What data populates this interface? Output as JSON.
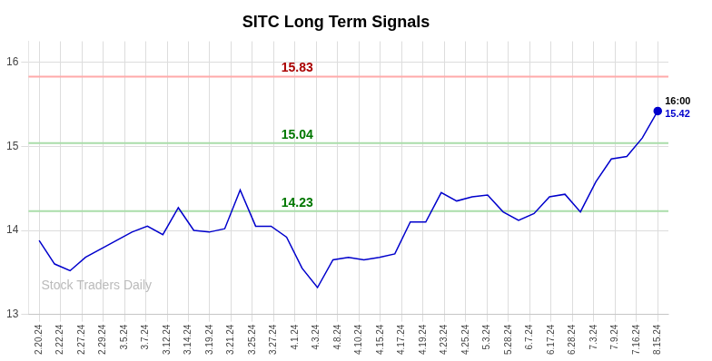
{
  "chart_data": {
    "type": "line",
    "title": "SITC Long Term Signals",
    "x": [
      0,
      0.725,
      1.45,
      2.175,
      2.9,
      3.625,
      4.35,
      5.075,
      5.8,
      6.525,
      7.25,
      7.975,
      8.7,
      9.425,
      10.15,
      10.875,
      11.6,
      12.325,
      13.05,
      13.775,
      14.5,
      15.225,
      15.95,
      16.675,
      17.4,
      18.125,
      18.85,
      19.575,
      20.3,
      21.025,
      21.75,
      22.475,
      23.2,
      23.925,
      24.65,
      25.375,
      26.1,
      26.825,
      27.55,
      28.275,
      29
    ],
    "values": [
      13.88,
      13.6,
      13.52,
      13.68,
      13.78,
      13.88,
      13.98,
      14.05,
      13.95,
      14.27,
      14.0,
      13.98,
      14.02,
      14.48,
      14.05,
      14.05,
      13.92,
      13.55,
      13.32,
      13.65,
      13.68,
      13.65,
      13.68,
      13.72,
      14.1,
      14.1,
      14.45,
      14.35,
      14.4,
      14.42,
      14.22,
      14.12,
      14.2,
      14.4,
      14.43,
      14.22,
      14.58,
      14.85,
      14.88,
      15.1,
      15.42
    ],
    "color": "#0000cc",
    "xlim": [
      -0.5,
      29.5
    ],
    "xticks": [
      {
        "value": 0,
        "label": "2.20.24"
      },
      {
        "value": 1,
        "label": "2.22.24"
      },
      {
        "value": 2,
        "label": "2.27.24"
      },
      {
        "value": 3,
        "label": "2.29.24"
      },
      {
        "value": 4,
        "label": "3.5.24"
      },
      {
        "value": 5,
        "label": "3.7.24"
      },
      {
        "value": 6,
        "label": "3.12.24"
      },
      {
        "value": 7,
        "label": "3.14.24"
      },
      {
        "value": 8,
        "label": "3.19.24"
      },
      {
        "value": 9,
        "label": "3.21.24"
      },
      {
        "value": 10,
        "label": "3.25.24"
      },
      {
        "value": 11,
        "label": "3.27.24"
      },
      {
        "value": 12,
        "label": "4.1.24"
      },
      {
        "value": 13,
        "label": "4.3.24"
      },
      {
        "value": 14,
        "label": "4.8.24"
      },
      {
        "value": 15,
        "label": "4.10.24"
      },
      {
        "value": 16,
        "label": "4.15.24"
      },
      {
        "value": 17,
        "label": "4.17.24"
      },
      {
        "value": 18,
        "label": "4.19.24"
      },
      {
        "value": 19,
        "label": "4.23.24"
      },
      {
        "value": 20,
        "label": "4.25.24"
      },
      {
        "value": 21,
        "label": "5.3.24"
      },
      {
        "value": 22,
        "label": "5.28.24"
      },
      {
        "value": 23,
        "label": "6.7.24"
      },
      {
        "value": 24,
        "label": "6.17.24"
      },
      {
        "value": 25,
        "label": "6.28.24"
      },
      {
        "value": 26,
        "label": "7.3.24"
      },
      {
        "value": 27,
        "label": "7.9.24"
      },
      {
        "value": 28,
        "label": "7.16.24"
      },
      {
        "value": 29,
        "label": "8.15.24"
      }
    ],
    "ylim": [
      13.0,
      16.25
    ],
    "yticks": [
      13,
      14,
      15,
      16
    ],
    "grid": true,
    "hlines": [
      {
        "value": 15.83,
        "label": "15.83",
        "color": "#ffaaaa",
        "label_color": "#aa0000"
      },
      {
        "value": 15.04,
        "label": "15.04",
        "color": "#aaddaa",
        "label_color": "#007700"
      },
      {
        "value": 14.23,
        "label": "14.23",
        "color": "#aaddaa",
        "label_color": "#007700"
      }
    ],
    "annotations": [
      {
        "text": "16:00",
        "x": 29,
        "y": 15.42,
        "color": "#000000"
      },
      {
        "text": "15.42",
        "x": 29,
        "y": 15.42,
        "color": "#0000cc"
      },
      {
        "text": "Stock Traders Daily",
        "color": "#bbbbbb"
      }
    ]
  }
}
